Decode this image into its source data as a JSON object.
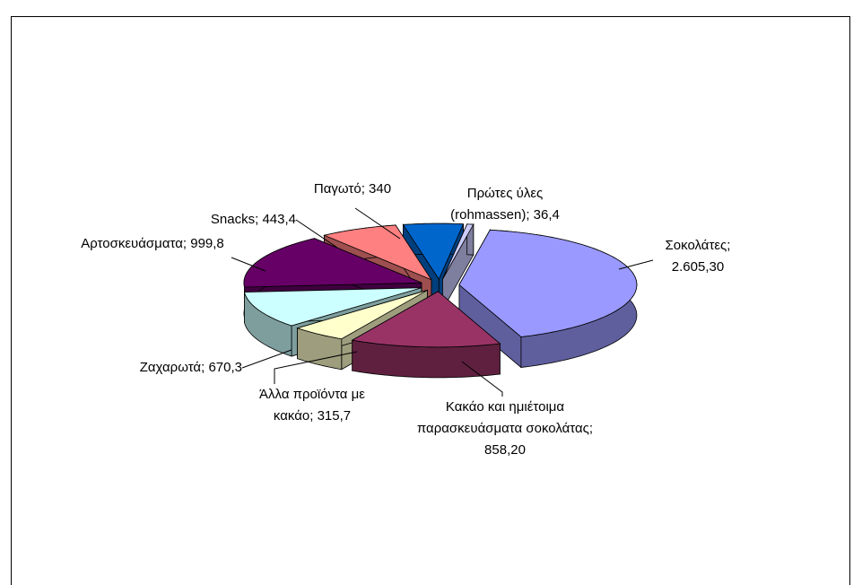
{
  "chart_data": {
    "type": "pie3d",
    "categories": [
      "Σοκολάτες",
      "Κακάο και ημιέτοιμα παρασκευάσματα σοκολάτας",
      "Άλλα προϊόντα με κακάο",
      "Ζαχαρωτά",
      "Αρτοσκευάσματα",
      "Snacks",
      "Παγωτό",
      "Πρώτες ύλες (rohmassen)"
    ],
    "values": [
      2605.3,
      858.2,
      315.7,
      670.3,
      999.8,
      443.4,
      340,
      36.4
    ],
    "value_labels": [
      "2.605,30",
      "858,20",
      "315,7",
      "670,3",
      "999,8",
      "443,4",
      "340",
      "36,4"
    ],
    "colors": [
      "#9999ff",
      "#993366",
      "#ffffcc",
      "#ccffff",
      "#660066",
      "#ff8080",
      "#0066cc",
      "#ccccff"
    ],
    "exploded": true
  }
}
